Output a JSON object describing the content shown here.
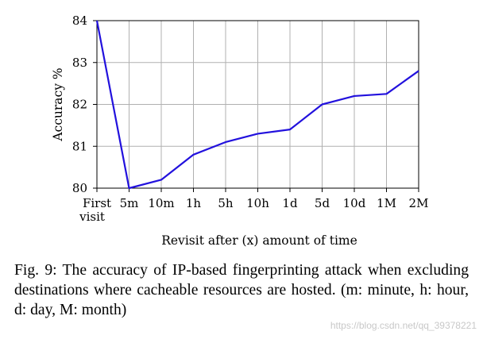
{
  "chart_data": {
    "type": "line",
    "categories": [
      "First visit",
      "5m",
      "10m",
      "1h",
      "5h",
      "10h",
      "1d",
      "5d",
      "10d",
      "1M",
      "2M"
    ],
    "category_lines": [
      [
        "First",
        "visit"
      ],
      [
        "5m"
      ],
      [
        "10m"
      ],
      [
        "1h"
      ],
      [
        "5h"
      ],
      [
        "10h"
      ],
      [
        "1d"
      ],
      [
        "5d"
      ],
      [
        "10d"
      ],
      [
        "1M"
      ],
      [
        "2M"
      ]
    ],
    "values": [
      84.0,
      80.0,
      80.2,
      80.8,
      81.1,
      81.3,
      81.4,
      82.0,
      82.2,
      82.25,
      82.8
    ],
    "ylim": [
      80,
      84
    ],
    "yticks": [
      80,
      81,
      82,
      83,
      84
    ],
    "xlabel": "Revisit after (x) amount of time",
    "ylabel": "Accuracy %",
    "grid": true,
    "line_color": "#2211dd"
  },
  "caption": "Fig. 9: The accuracy of IP-based fingerprinting attack when excluding destinations where cacheable resources are hosted. (m: minute, h: hour, d: day, M: month)",
  "watermark": "https://blog.csdn.net/qq_39378221"
}
